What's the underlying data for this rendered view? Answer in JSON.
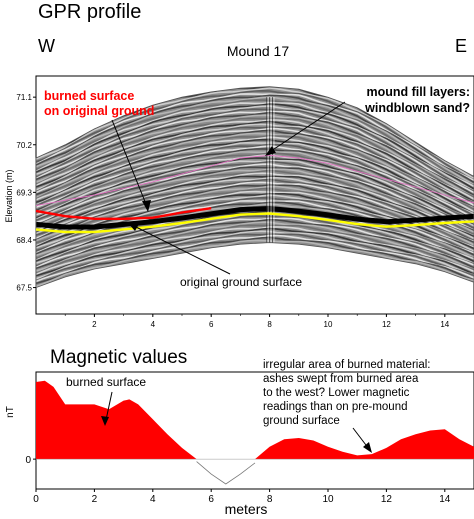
{
  "chart_data": [
    {
      "type": "line",
      "title": "GPR profile",
      "subtitle": "Mound 17",
      "ylabel": "Elevation (m)",
      "direction_left": "W",
      "direction_right": "E",
      "xlim": [
        0,
        15
      ],
      "ylim": [
        67.0,
        71.5
      ],
      "xticks": [
        "2",
        "4",
        "6",
        "8",
        "10",
        "12",
        "14"
      ],
      "yticks": [
        "71.1",
        "70.2",
        "69.3",
        "68.4",
        "67.5"
      ],
      "series": [
        {
          "name": "burned surface",
          "color": "#ff0000",
          "x": [
            0,
            1,
            2,
            3,
            4,
            5,
            6
          ],
          "y": [
            68.95,
            68.85,
            68.8,
            68.8,
            68.82,
            68.92,
            69.0
          ]
        },
        {
          "name": "original ground surface",
          "color": "#ffff00",
          "x": [
            0,
            1,
            2,
            3,
            4,
            5,
            6,
            7,
            8,
            9,
            10,
            11,
            12,
            13,
            14,
            15
          ],
          "y": [
            68.6,
            68.55,
            68.55,
            68.6,
            68.65,
            68.72,
            68.8,
            68.88,
            68.9,
            68.85,
            68.78,
            68.7,
            68.65,
            68.68,
            68.72,
            68.75
          ]
        },
        {
          "name": "mound fill layers",
          "color": "#e070c0",
          "x": [
            0,
            2,
            4,
            6,
            7,
            8,
            9,
            10,
            12,
            14,
            15
          ],
          "y": [
            69.05,
            69.25,
            69.5,
            69.8,
            69.95,
            70.0,
            69.95,
            69.85,
            69.55,
            69.25,
            69.1
          ]
        }
      ],
      "mound_surface": {
        "x": [
          0,
          1,
          2,
          3,
          4,
          5,
          6,
          7,
          8,
          9,
          10,
          11,
          12,
          13,
          14,
          15
        ],
        "top": [
          69.95,
          70.2,
          70.5,
          70.75,
          70.95,
          71.1,
          71.2,
          71.27,
          71.3,
          71.25,
          71.1,
          70.9,
          70.6,
          70.25,
          69.9,
          69.6
        ],
        "bottom": [
          67.5,
          67.7,
          67.85,
          67.95,
          68.05,
          68.15,
          68.25,
          68.32,
          68.35,
          68.32,
          68.25,
          68.15,
          68.05,
          67.95,
          67.8,
          67.6
        ]
      },
      "annotations": [
        {
          "text": "burned surface",
          "line2": "on original ground",
          "color": "#ff0000"
        },
        {
          "text": "mound fill layers:",
          "line2": "windblown sand?",
          "color": "#000000"
        },
        {
          "text": "original ground surface",
          "color": "#000000"
        }
      ]
    },
    {
      "type": "area",
      "title": "Magnetic values",
      "ylabel": "nT",
      "xlabel": "meters",
      "xlim": [
        0,
        15
      ],
      "ylim": [
        -1.2,
        3.5
      ],
      "xticks": [
        "0",
        "2",
        "4",
        "6",
        "8",
        "10",
        "12",
        "14"
      ],
      "yticks": [
        "0"
      ],
      "series": [
        {
          "name": "magnetic",
          "color": "#ff0000",
          "x": [
            0,
            0.3,
            0.6,
            1,
            1.5,
            2,
            2.5,
            3,
            3.2,
            3.5,
            4,
            4.5,
            5,
            5.5,
            6,
            6.5,
            7,
            7.5,
            8,
            8.5,
            9,
            9.5,
            10,
            10.5,
            11,
            11.5,
            12,
            12.5,
            13,
            13.5,
            14,
            14.5,
            15
          ],
          "y": [
            3.1,
            3.15,
            2.9,
            2.2,
            2.2,
            2.2,
            2.0,
            2.35,
            2.4,
            2.2,
            1.6,
            1.0,
            0.45,
            -0.1,
            -0.6,
            -1.0,
            -0.6,
            -0.15,
            0.5,
            0.8,
            0.85,
            0.75,
            0.5,
            0.3,
            0.15,
            0.2,
            0.45,
            0.8,
            1.0,
            1.15,
            1.2,
            0.8,
            0.5
          ]
        }
      ],
      "annotations": [
        {
          "text": "burned surface"
        },
        {
          "text": "irregular area of burned material:",
          "line2": "ashes swept from burned area",
          "line3": "to the west?  Lower magnetic",
          "line4": "readings than on pre-mound",
          "line5": "ground surface"
        }
      ]
    }
  ]
}
